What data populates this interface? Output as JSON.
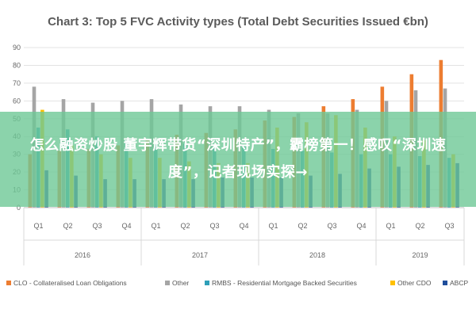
{
  "chart_data": {
    "type": "bar",
    "title": "Chart 3: Top 5 FVC Activity types (Total Debt Securities Issued €bn)",
    "ylim": [
      0,
      90
    ],
    "yticks": [
      0,
      10,
      20,
      30,
      40,
      50,
      60,
      70,
      80,
      90
    ],
    "grid": true,
    "legend_position": "bottom",
    "categories": [
      "Q1",
      "Q2",
      "Q3",
      "Q4",
      "Q1",
      "Q2",
      "Q3",
      "Q4",
      "Q1",
      "Q2",
      "Q3",
      "Q4",
      "Q1",
      "Q2",
      "Q3"
    ],
    "years": [
      {
        "label": "2016",
        "start": 0,
        "count": 4
      },
      {
        "label": "2017",
        "start": 4,
        "count": 4
      },
      {
        "label": "2018",
        "start": 8,
        "count": 4
      },
      {
        "label": "2019",
        "start": 12,
        "count": 3
      }
    ],
    "series": [
      {
        "name": "CLO - Collateralised Loan Obligations",
        "color": "#ed7d31",
        "values": [
          30,
          32,
          33,
          35,
          38,
          41,
          42,
          44,
          49,
          51,
          57,
          61,
          68,
          75,
          83
        ]
      },
      {
        "name": "Other",
        "color": "#a5a5a5",
        "values": [
          68,
          61,
          59,
          60,
          61,
          58,
          57,
          57,
          55,
          53,
          53,
          55,
          60,
          66,
          67
        ]
      },
      {
        "name": "RMBS - Residential Mortgage Backed Securities",
        "color": "#2e9fb8",
        "values": [
          45,
          44,
          40,
          38,
          38,
          36,
          35,
          35,
          33,
          32,
          31,
          30,
          30,
          29,
          28
        ]
      },
      {
        "name": "Other CDO",
        "color": "#ffc000",
        "values": [
          55,
          35,
          30,
          28,
          28,
          26,
          25,
          25,
          45,
          48,
          52,
          45,
          40,
          38,
          30
        ]
      },
      {
        "name": "ABCP",
        "color": "#1f4e9b",
        "values": [
          21,
          18,
          16,
          16,
          16,
          16,
          17,
          17,
          17,
          18,
          19,
          22,
          23,
          24,
          25
        ]
      }
    ]
  },
  "overlay": {
    "text": "怎么融资炒股 董宇辉带货“深圳特产”，霸榜第一！感叹“深圳速度”，记者现场实探→"
  }
}
